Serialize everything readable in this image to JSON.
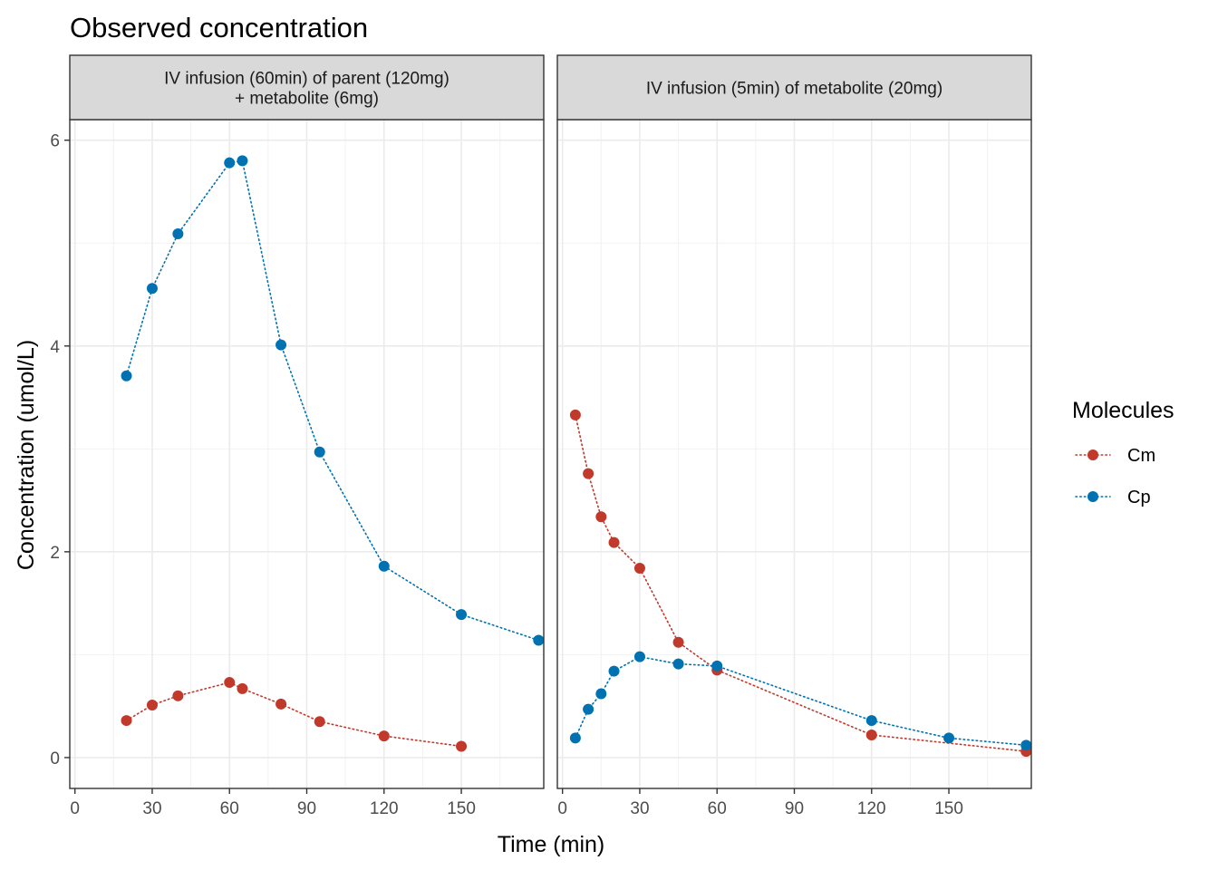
{
  "chart_data": {
    "type": "line",
    "title": "Observed concentration",
    "xlabel": "Time (min)",
    "ylabel": "Concentration (umol/L)",
    "xlim": [
      -2,
      182
    ],
    "ylim": [
      -0.3,
      6.2
    ],
    "x_ticks": [
      0,
      30,
      60,
      90,
      120,
      150
    ],
    "y_ticks": [
      0,
      2,
      4,
      6
    ],
    "grid": true,
    "legend": {
      "title": "Molecules",
      "position": "right",
      "entries": [
        {
          "name": "Cm",
          "color": "#c0392b"
        },
        {
          "name": "Cp",
          "color": "#0072b2"
        }
      ]
    },
    "panels": [
      {
        "strip": [
          "IV infusion (60min) of parent (120mg)",
          "+ metabolite (6mg)"
        ],
        "series": [
          {
            "name": "Cm",
            "color": "#c0392b",
            "x": [
              20,
              30,
              40,
              60,
              65,
              80,
              95,
              120,
              150
            ],
            "y": [
              0.36,
              0.51,
              0.6,
              0.73,
              0.67,
              0.52,
              0.35,
              0.21,
              0.11
            ]
          },
          {
            "name": "Cp",
            "color": "#0072b2",
            "x": [
              20,
              30,
              40,
              60,
              65,
              80,
              95,
              120,
              150,
              180
            ],
            "y": [
              3.71,
              4.56,
              5.09,
              5.78,
              5.8,
              4.01,
              2.97,
              1.86,
              1.39,
              1.14
            ]
          }
        ]
      },
      {
        "strip": [
          "IV infusion (5min) of metabolite (20mg)"
        ],
        "series": [
          {
            "name": "Cm",
            "color": "#c0392b",
            "x": [
              5,
              10,
              15,
              20,
              30,
              45,
              60,
              120,
              180
            ],
            "y": [
              3.33,
              2.76,
              2.34,
              2.09,
              1.84,
              1.12,
              0.85,
              0.22,
              0.06
            ]
          },
          {
            "name": "Cp",
            "color": "#0072b2",
            "x": [
              5,
              10,
              15,
              20,
              30,
              45,
              60,
              120,
              150,
              180
            ],
            "y": [
              0.19,
              0.47,
              0.62,
              0.84,
              0.98,
              0.91,
              0.89,
              0.36,
              0.19,
              0.12
            ]
          }
        ]
      }
    ]
  }
}
